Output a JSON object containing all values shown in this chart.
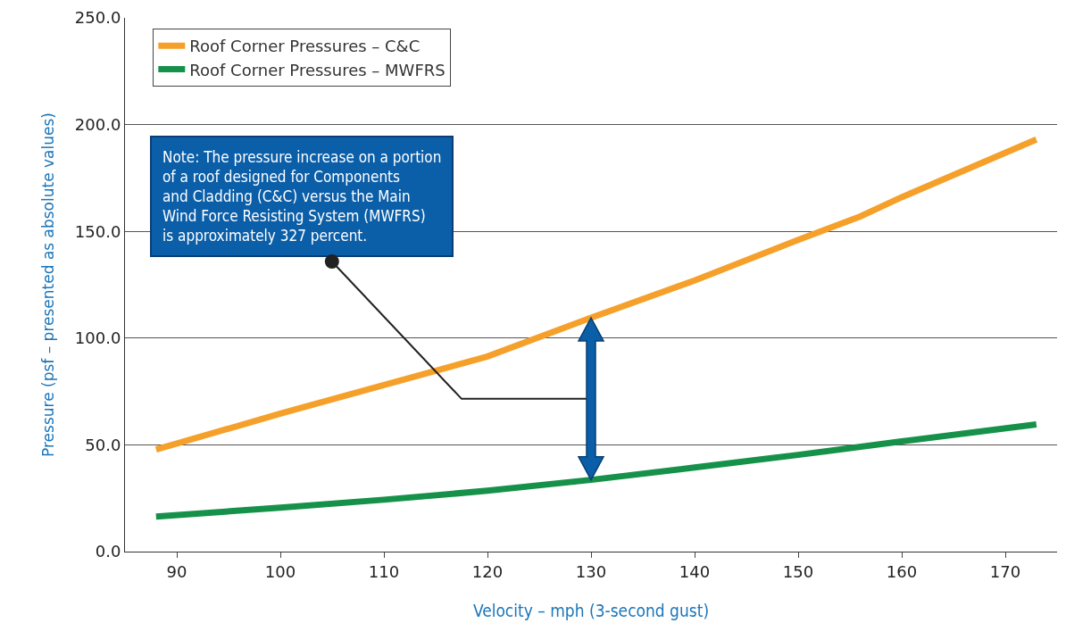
{
  "chart_data": {
    "type": "line",
    "xlabel": "Velocity – mph (3-second gust)",
    "ylabel": "Pressure (psf – presented as absolute values)",
    "xlim": [
      85,
      175
    ],
    "xticks": [
      90,
      100,
      110,
      120,
      130,
      140,
      150,
      160,
      170
    ],
    "ylim": [
      0,
      250
    ],
    "yticks": [
      {
        "value": 0,
        "label": "0.0"
      },
      {
        "value": 50,
        "label": "50.0"
      },
      {
        "value": 100,
        "label": "100.0"
      },
      {
        "value": 150,
        "label": "150.0"
      },
      {
        "value": 200,
        "label": "200.0"
      },
      {
        "value": 250,
        "label": "250.0"
      }
    ],
    "grid": "y",
    "legend": "top left",
    "marker": "none",
    "line_style": "solid",
    "series": [
      {
        "name": "Roof Corner Pressures – C&C",
        "color": "#f5a02a",
        "x": [
          88,
          100,
          110,
          120,
          130,
          140,
          150,
          156,
          160,
          173
        ],
        "values": [
          47.8,
          64.6,
          78,
          91.4,
          109.5,
          127,
          146,
          157,
          166,
          193
        ]
      },
      {
        "name": "Roof Corner Pressures – MWFRS",
        "color": "#16914a",
        "x": [
          88,
          100,
          110,
          120,
          130,
          140,
          150,
          160,
          173
        ],
        "values": [
          16.4,
          20.6,
          24.3,
          28.5,
          33.6,
          39.4,
          45.3,
          51.6,
          59.6
        ]
      }
    ],
    "annotations": [
      "Note: The pressure increase on a portion\nof a roof designed for Components\nand Cladding (C&C) versus the Main\nWind Force Resisting System (MWFRS)\nis approximately 327 percent."
    ]
  }
}
